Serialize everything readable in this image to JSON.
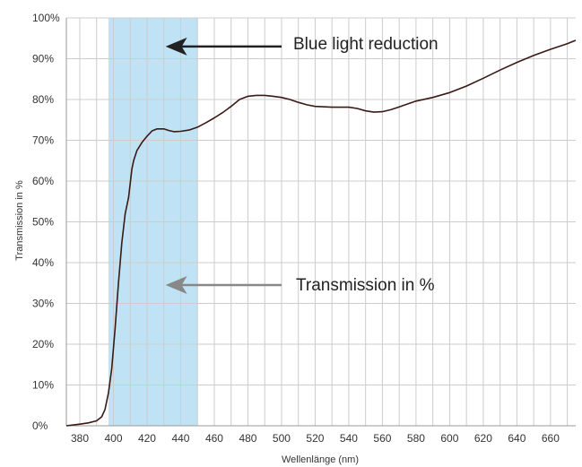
{
  "chart_data": {
    "type": "line",
    "title": "",
    "xlabel": "Wellenlänge (nm)",
    "ylabel": "Transmission in %",
    "xlim": [
      372,
      675
    ],
    "ylim": [
      0,
      100
    ],
    "x_ticks": [
      380,
      400,
      420,
      440,
      460,
      480,
      500,
      520,
      540,
      560,
      580,
      600,
      620,
      640,
      660
    ],
    "x_tick_labels": [
      "380",
      "400",
      "420",
      "440",
      "460",
      "480",
      "500",
      "520",
      "540",
      "560",
      "580",
      "600",
      "620",
      "640",
      "660"
    ],
    "y_ticks": [
      0,
      10,
      20,
      30,
      40,
      50,
      60,
      70,
      80,
      90,
      100
    ],
    "y_tick_labels": [
      "0%",
      "10%",
      "20%",
      "30%",
      "40%",
      "50%",
      "60%",
      "70%",
      "80%",
      "90%",
      "100%"
    ],
    "grid": true,
    "highlight_band": {
      "x_range": [
        397,
        450
      ],
      "color": "#bfe3f5",
      "label": "Blue light reduction"
    },
    "annotations": [
      {
        "text": "Blue light reduction",
        "arrow_to": [
          431,
          93
        ],
        "color": "#222222"
      },
      {
        "text": "Transmission in %",
        "arrow_to": [
          431,
          34.5
        ],
        "color": "#888888"
      }
    ],
    "series": [
      {
        "color": "#3a1a14",
        "x": [
          372,
          380,
          385,
          390,
          393,
          395,
          397,
          399,
          401,
          403,
          405,
          407,
          409,
          411,
          412,
          414,
          417,
          420,
          423,
          426,
          430,
          433,
          436,
          440,
          445,
          450,
          455,
          460,
          465,
          470,
          475,
          480,
          485,
          490,
          495,
          500,
          505,
          510,
          515,
          520,
          530,
          540,
          545,
          550,
          555,
          560,
          565,
          570,
          575,
          580,
          590,
          600,
          610,
          620,
          630,
          640,
          650,
          660,
          670,
          675
        ],
        "y": [
          0,
          0.4,
          0.7,
          1.2,
          2.2,
          4,
          8,
          14,
          24,
          35,
          45,
          52,
          56,
          63,
          65,
          67.5,
          69.5,
          71,
          72.3,
          72.8,
          72.8,
          72.4,
          72.1,
          72.2,
          72.5,
          73.2,
          74.3,
          75.5,
          76.8,
          78.3,
          80,
          80.8,
          81,
          81,
          80.8,
          80.5,
          80,
          79.3,
          78.7,
          78.3,
          78.1,
          78.1,
          77.8,
          77.2,
          76.9,
          77,
          77.5,
          78.2,
          78.9,
          79.6,
          80.5,
          81.7,
          83.3,
          85.2,
          87.2,
          89.1,
          90.8,
          92.3,
          93.7,
          94.5
        ]
      }
    ]
  }
}
